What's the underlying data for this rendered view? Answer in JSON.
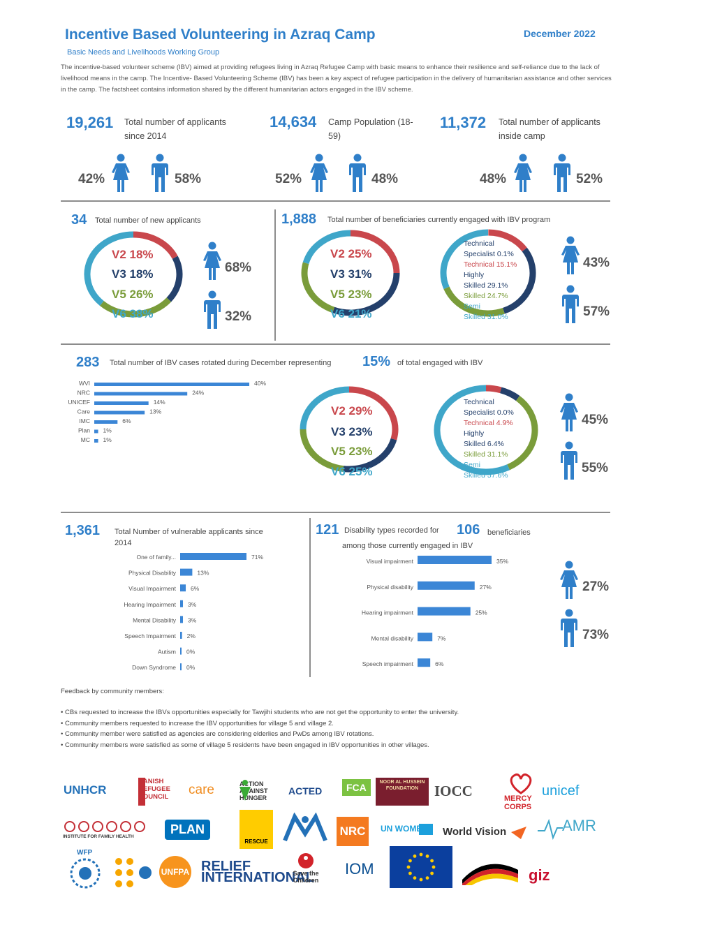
{
  "header": {
    "title": "Incentive Based Volunteering in Azraq Camp",
    "date": "December 2022",
    "subtitle": "Basic Needs and Livelihoods Working Group",
    "intro": "The incentive-based volunteer scheme (IBV) aimed at providing refugees living in Azraq Refugee Camp with basic means to enhance their resilience and self-reliance due to the lack of livelihood means in the camp. The Incentive- Based Volunteering Scheme (IBV) has been a key aspect of refugee participation in the delivery of humanitarian assistance and other services in the camp. The factsheet contains information shared by the different humanitarian actors engaged in the IBV scheme."
  },
  "kpis": [
    {
      "value": "19,261",
      "label": "Total number of applicants since 2014",
      "female": "42%",
      "male": "58%"
    },
    {
      "value": "14,634",
      "label": "Camp Population (18-59)",
      "female": "52%",
      "male": "48%"
    },
    {
      "value": "11,372",
      "label": "Total number of applicants inside camp",
      "female": "48%",
      "male": "52%"
    }
  ],
  "new_applicants": {
    "value": "34",
    "label": "Total number of new applicants",
    "villages": [
      "V2 18%",
      "V3 18%",
      "V5 26%",
      "V6 38%"
    ],
    "female": "68%",
    "male": "32%"
  },
  "engaged": {
    "value": "1,888",
    "label": "Total number of beneficiaries currently engaged with IBV program",
    "villages": [
      "V2 25%",
      "V3 31%",
      "V5 23%",
      "V6 21%"
    ],
    "skills": [
      "Technical",
      "Specialist 0.1%",
      "Technical 15.1%",
      "Highly",
      "Skilled 29.1%",
      "Skilled 24.7%",
      "Semi",
      "Skilled 31.0%"
    ],
    "female": "43%",
    "male": "57%"
  },
  "rotated": {
    "value": "283",
    "label_pre": "Total number of IBV cases rotated during December representing",
    "share": "15%",
    "label_post": "of total engaged with IBV",
    "villages": [
      "V2 29%",
      "V3 23%",
      "V5 23%",
      "V6 25%"
    ],
    "skills": [
      "Technical",
      "Specialist 0.0%",
      "Technical 4.9%",
      "Highly",
      "Skilled 6.4%",
      "Skilled 31.1%",
      "Semi",
      "Skilled 57.6%"
    ],
    "female": "45%",
    "male": "55%"
  },
  "vulnerable": {
    "value": "1,361",
    "label": "Total Number of vulnerable applicants since 2014"
  },
  "disability": {
    "value1": "121",
    "label1": "Disability types recorded for",
    "value2": "106",
    "label2": "beneficiaries among those currently engaged in IBV",
    "female": "27%",
    "male": "73%"
  },
  "feedback": {
    "title": "Feedback by community members:",
    "items": [
      "• CBs requested to increase the IBVs opportunities especially for Tawjihi students who are not get the opportunity to enter the university.",
      "• Community members requested to increase the IBV opportunities for village 5 and village 2.",
      "• Community member were satisfied as agencies are considering elderlies and PwDs among IBV rotations.",
      "• Community members were satisfied as some of village 5 residents have been engaged in IBV opportunities in other villages."
    ]
  },
  "logos": {
    "row1": [
      "UNHCR",
      "DANISH REFUGEE COUNCIL",
      "care",
      "ACTION AGAINST HUNGER",
      "ACTED",
      "FCA",
      "NOOR AL HUSSEIN FOUNDATION",
      "IOCC",
      "MERCY CORPS",
      "unicef"
    ],
    "row2": [
      "INSTITUTE FOR FAMILY HEALTH",
      "PLAN",
      "RESCUE",
      "NRC",
      "UN WOMEN",
      "World Vision",
      "AMR"
    ],
    "row3": [
      "WFP",
      "UNFPA",
      "RELIEF INTERNATIONAL",
      "Save the Children",
      "IOM",
      "giz"
    ]
  },
  "chart_data": [
    {
      "type": "bar",
      "title": "",
      "categories": [
        "WVI",
        "NRC",
        "UNICEF",
        "Care",
        "IMC",
        "Plan",
        "MC"
      ],
      "values": [
        40,
        24,
        14,
        13,
        6,
        1,
        1
      ],
      "value_labels": [
        "40%",
        "24%",
        "14%",
        "13%",
        "6%",
        "1%",
        "1%"
      ],
      "bar_color": "#3b86d6"
    },
    {
      "type": "bar",
      "title": "",
      "categories": [
        "One of family...",
        "Physical Disability",
        "Visual Impairment",
        "Hearing Impairment",
        "Mental Disability",
        "Speech Impairment",
        "Autism",
        "Down Syndrome"
      ],
      "values": [
        71,
        13,
        6,
        3,
        3,
        2,
        0,
        0
      ],
      "value_labels": [
        "71%",
        "13%",
        "6%",
        "3%",
        "3%",
        "2%",
        "0%",
        "0%"
      ],
      "bar_color": "#3b86d6"
    },
    {
      "type": "bar",
      "title": "",
      "categories": [
        "Visual impairment",
        "Physical disability",
        "Hearing impairment",
        "Mental disability",
        "Speech impairment"
      ],
      "values": [
        35,
        27,
        25,
        7,
        6
      ],
      "value_labels": [
        "35%",
        "27%",
        "25%",
        "7%",
        "6%"
      ],
      "bar_color": "#3b86d6"
    },
    {
      "type": "pie",
      "title": "",
      "categories": [
        "V2",
        "V3",
        "V5",
        "V6"
      ],
      "values": [
        18,
        18,
        26,
        38
      ],
      "colors": [
        "#c9474c",
        "#24406b",
        "#7a9c3a",
        "#3fa6c9"
      ]
    },
    {
      "type": "pie",
      "title": "",
      "categories": [
        "V2",
        "V3",
        "V5",
        "V6"
      ],
      "values": [
        25,
        31,
        23,
        21
      ],
      "colors": [
        "#c9474c",
        "#24406b",
        "#7a9c3a",
        "#3fa6c9"
      ]
    },
    {
      "type": "pie",
      "title": "",
      "categories": [
        "Technical Specialist",
        "Technical",
        "Highly Skilled",
        "Skilled",
        "Semi Skilled"
      ],
      "values": [
        0.1,
        15.1,
        29.1,
        24.7,
        31.0
      ],
      "colors": [
        "#e8e8e8",
        "#c9474c",
        "#24406b",
        "#7a9c3a",
        "#3fa6c9"
      ]
    },
    {
      "type": "pie",
      "title": "",
      "categories": [
        "V2",
        "V3",
        "V5",
        "V6"
      ],
      "values": [
        29,
        23,
        23,
        25
      ],
      "colors": [
        "#c9474c",
        "#24406b",
        "#7a9c3a",
        "#3fa6c9"
      ]
    },
    {
      "type": "pie",
      "title": "",
      "categories": [
        "Technical Specialist",
        "Technical",
        "Highly Skilled",
        "Skilled",
        "Semi Skilled"
      ],
      "values": [
        0.0,
        4.9,
        6.4,
        31.1,
        57.6
      ],
      "colors": [
        "#e8e8e8",
        "#c9474c",
        "#24406b",
        "#7a9c3a",
        "#3fa6c9"
      ]
    }
  ]
}
